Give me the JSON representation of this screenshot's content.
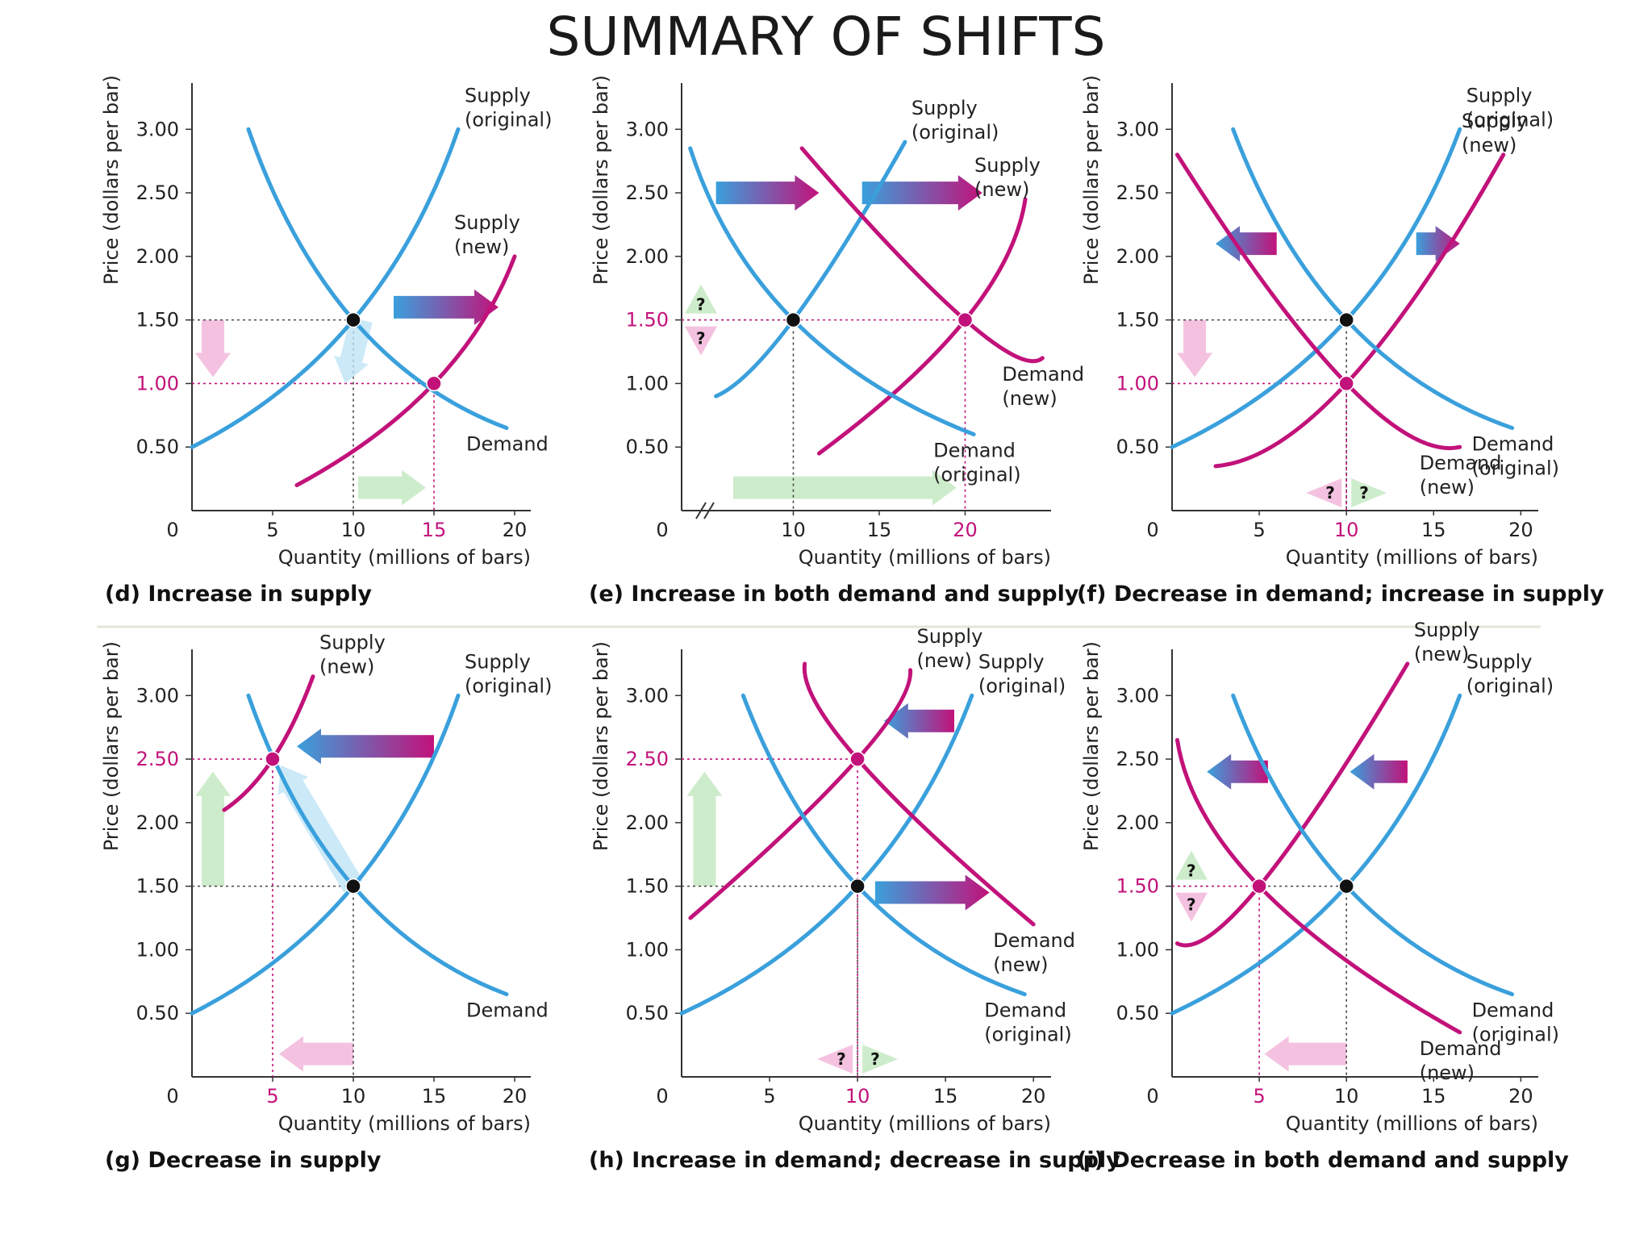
{
  "title": "SUMMARY OF SHIFTS",
  "colors": {
    "blue": "#3aa0dc",
    "magenta": "#c2127a",
    "green_arrow": "#cdeccb",
    "pink_arrow": "#f4c2e0",
    "light_blue_arrow": "#bfe3f6"
  },
  "chart_data": [
    {
      "type": "line",
      "panel": "d",
      "caption": "(d) Increase in supply",
      "xlabel": "Quantity (millions of bars)",
      "ylabel": "Price (dollars per bar)",
      "xlim": [
        0,
        21
      ],
      "ylim": [
        0,
        3.3
      ],
      "xticks": [
        "0",
        "5",
        "10",
        "15",
        "20"
      ],
      "yticks": [
        "0.50",
        "1.00",
        "1.50",
        "2.00",
        "2.50",
        "3.00"
      ],
      "highlight": {
        "x": "15",
        "y": "1.00"
      },
      "series": [
        {
          "name": "Supply (original)",
          "label_lines": [
            "Supply",
            "(original)"
          ],
          "color": "blue",
          "x": [
            0,
            10,
            16.5
          ],
          "y": [
            0.5,
            1.5,
            3.0
          ]
        },
        {
          "name": "Supply (new)",
          "label_lines": [
            "Supply",
            "(new)"
          ],
          "color": "magenta",
          "x": [
            6.5,
            15,
            20
          ],
          "y": [
            0.2,
            1.0,
            2.0
          ]
        },
        {
          "name": "Demand",
          "label_lines": [
            "Demand"
          ],
          "color": "blue",
          "x": [
            3.5,
            10,
            19.5
          ],
          "y": [
            3.0,
            1.5,
            0.65
          ]
        }
      ],
      "points": [
        {
          "x": 10,
          "y": 1.5,
          "color": "black"
        },
        {
          "x": 15,
          "y": 1.0,
          "color": "magenta"
        }
      ]
    },
    {
      "type": "line",
      "panel": "e",
      "caption": "(e) Increase in both demand and supply",
      "xlabel": "Quantity (millions of bars)",
      "ylabel": "Price (dollars per bar)",
      "xlim": [
        3.5,
        25
      ],
      "ylim": [
        0,
        3.3
      ],
      "xticks": [
        "0",
        "10",
        "15",
        "20"
      ],
      "yticks": [
        "0.50",
        "1.00",
        "1.50",
        "2.00",
        "2.50",
        "3.00"
      ],
      "axis_break": true,
      "highlight": {
        "x": "20",
        "y": "1.50"
      },
      "series": [
        {
          "name": "Supply (original)",
          "label_lines": [
            "Supply",
            "(original)"
          ],
          "color": "blue",
          "x": [
            5.5,
            10,
            16.5
          ],
          "y": [
            0.9,
            1.5,
            2.9
          ]
        },
        {
          "name": "Supply (new)",
          "label_lines": [
            "Supply",
            "(new)"
          ],
          "color": "magenta",
          "x": [
            11.5,
            20,
            23.5
          ],
          "y": [
            0.45,
            1.5,
            2.45
          ]
        },
        {
          "name": "Demand (original)",
          "label_lines": [
            "Demand",
            "(original)"
          ],
          "color": "blue",
          "x": [
            4,
            10,
            20.5
          ],
          "y": [
            2.85,
            1.5,
            0.6
          ]
        },
        {
          "name": "Demand (new)",
          "label_lines": [
            "Demand",
            "(new)"
          ],
          "color": "magenta",
          "x": [
            10.5,
            20,
            24.5
          ],
          "y": [
            2.85,
            1.5,
            1.2
          ]
        }
      ],
      "points": [
        {
          "x": 10,
          "y": 1.5,
          "color": "black"
        },
        {
          "x": 20,
          "y": 1.5,
          "color": "magenta"
        }
      ]
    },
    {
      "type": "line",
      "panel": "f",
      "caption": "(f) Decrease in demand; increase in supply",
      "xlabel": "Quantity (millions of bars)",
      "ylabel": "Price (dollars per bar)",
      "xlim": [
        0,
        21
      ],
      "ylim": [
        0,
        3.3
      ],
      "xticks": [
        "0",
        "5",
        "10",
        "15",
        "20"
      ],
      "yticks": [
        "0.50",
        "1.00",
        "1.50",
        "2.00",
        "2.50",
        "3.00"
      ],
      "highlight": {
        "x": "10",
        "y": "1.00"
      },
      "series": [
        {
          "name": "Supply (original)",
          "label_lines": [
            "Supply",
            "(original)"
          ],
          "color": "blue",
          "x": [
            0,
            10,
            16.5
          ],
          "y": [
            0.5,
            1.5,
            3.0
          ]
        },
        {
          "name": "Supply (new)",
          "label_lines": [
            "Supply",
            "(new)"
          ],
          "color": "magenta",
          "x": [
            2.5,
            10,
            19
          ],
          "y": [
            0.35,
            1.0,
            2.8
          ]
        },
        {
          "name": "Demand (original)",
          "label_lines": [
            "Demand",
            "(original)"
          ],
          "color": "blue",
          "x": [
            3.5,
            10,
            19.5
          ],
          "y": [
            3.0,
            1.5,
            0.65
          ]
        },
        {
          "name": "Demand (new)",
          "label_lines": [
            "Demand",
            "(new)"
          ],
          "color": "magenta",
          "x": [
            0.3,
            10,
            16.5
          ],
          "y": [
            2.8,
            1.0,
            0.5
          ]
        }
      ],
      "points": [
        {
          "x": 10,
          "y": 1.5,
          "color": "black"
        },
        {
          "x": 10,
          "y": 1.0,
          "color": "magenta"
        }
      ]
    },
    {
      "type": "line",
      "panel": "g",
      "caption": "(g) Decrease in supply",
      "xlabel": "Quantity (millions of bars)",
      "ylabel": "Price (dollars per bar)",
      "xlim": [
        0,
        21
      ],
      "ylim": [
        0,
        3.3
      ],
      "xticks": [
        "0",
        "5",
        "10",
        "15",
        "20"
      ],
      "yticks": [
        "0.50",
        "1.00",
        "1.50",
        "2.00",
        "2.50",
        "3.00"
      ],
      "highlight": {
        "x": "5",
        "y": "2.50"
      },
      "series": [
        {
          "name": "Supply (original)",
          "label_lines": [
            "Supply",
            "(original)"
          ],
          "color": "blue",
          "x": [
            0,
            10,
            16.5
          ],
          "y": [
            0.5,
            1.5,
            3.0
          ]
        },
        {
          "name": "Supply (new)",
          "label_lines": [
            "Supply",
            "(new)"
          ],
          "color": "magenta",
          "x": [
            2,
            5,
            7.5
          ],
          "y": [
            2.1,
            2.5,
            3.15
          ]
        },
        {
          "name": "Demand",
          "label_lines": [
            "Demand"
          ],
          "color": "blue",
          "x": [
            3.5,
            10,
            19.5
          ],
          "y": [
            3.0,
            1.5,
            0.65
          ]
        }
      ],
      "points": [
        {
          "x": 10,
          "y": 1.5,
          "color": "black"
        },
        {
          "x": 5,
          "y": 2.5,
          "color": "magenta"
        }
      ]
    },
    {
      "type": "line",
      "panel": "h",
      "caption": "(h) Increase in demand; decrease in supply",
      "xlabel": "Quantity (millions of bars)",
      "ylabel": "Price (dollars per bar)",
      "xlim": [
        0,
        21
      ],
      "ylim": [
        0,
        3.3
      ],
      "xticks": [
        "0",
        "5",
        "10",
        "15",
        "20"
      ],
      "yticks": [
        "0.50",
        "1.00",
        "1.50",
        "2.00",
        "2.50",
        "3.00"
      ],
      "highlight": {
        "x": "10",
        "y": "2.50"
      },
      "series": [
        {
          "name": "Supply (original)",
          "label_lines": [
            "Supply",
            "(original)"
          ],
          "color": "blue",
          "x": [
            0,
            10,
            16.5
          ],
          "y": [
            0.5,
            1.5,
            3.0
          ]
        },
        {
          "name": "Supply (new)",
          "label_lines": [
            "Supply",
            "(new)"
          ],
          "color": "magenta",
          "x": [
            0.5,
            10,
            13
          ],
          "y": [
            1.25,
            2.5,
            3.2
          ]
        },
        {
          "name": "Demand (original)",
          "label_lines": [
            "Demand",
            "(original)"
          ],
          "color": "blue",
          "x": [
            3.5,
            10,
            19.5
          ],
          "y": [
            3.0,
            1.5,
            0.65
          ]
        },
        {
          "name": "Demand (new)",
          "label_lines": [
            "Demand",
            "(new)"
          ],
          "color": "magenta",
          "x": [
            7,
            10,
            20
          ],
          "y": [
            3.25,
            2.5,
            1.2
          ]
        }
      ],
      "points": [
        {
          "x": 10,
          "y": 1.5,
          "color": "black"
        },
        {
          "x": 10,
          "y": 2.5,
          "color": "magenta"
        }
      ]
    },
    {
      "type": "line",
      "panel": "i",
      "caption": "(i) Decrease in both demand and supply",
      "xlabel": "Quantity (millions of bars)",
      "ylabel": "Price (dollars per bar)",
      "xlim": [
        0,
        21
      ],
      "ylim": [
        0,
        3.3
      ],
      "xticks": [
        "0",
        "5",
        "10",
        "15",
        "20"
      ],
      "yticks": [
        "0.50",
        "1.00",
        "1.50",
        "2.00",
        "2.50",
        "3.00"
      ],
      "highlight": {
        "x": "5",
        "y": "1.50"
      },
      "series": [
        {
          "name": "Supply (original)",
          "label_lines": [
            "Supply",
            "(original)"
          ],
          "color": "blue",
          "x": [
            0,
            10,
            16.5
          ],
          "y": [
            0.5,
            1.5,
            3.0
          ]
        },
        {
          "name": "Supply (new)",
          "label_lines": [
            "Supply",
            "(new)"
          ],
          "color": "magenta",
          "x": [
            0.3,
            5,
            13.5
          ],
          "y": [
            1.05,
            1.5,
            3.25
          ]
        },
        {
          "name": "Demand (original)",
          "label_lines": [
            "Demand",
            "(original)"
          ],
          "color": "blue",
          "x": [
            3.5,
            10,
            19.5
          ],
          "y": [
            3.0,
            1.5,
            0.65
          ]
        },
        {
          "name": "Demand (new)",
          "label_lines": [
            "Demand",
            "(new)"
          ],
          "color": "magenta",
          "x": [
            0.3,
            5,
            16.5
          ],
          "y": [
            2.65,
            1.5,
            0.35
          ]
        }
      ],
      "points": [
        {
          "x": 10,
          "y": 1.5,
          "color": "black"
        },
        {
          "x": 5,
          "y": 1.5,
          "color": "magenta"
        }
      ]
    }
  ]
}
